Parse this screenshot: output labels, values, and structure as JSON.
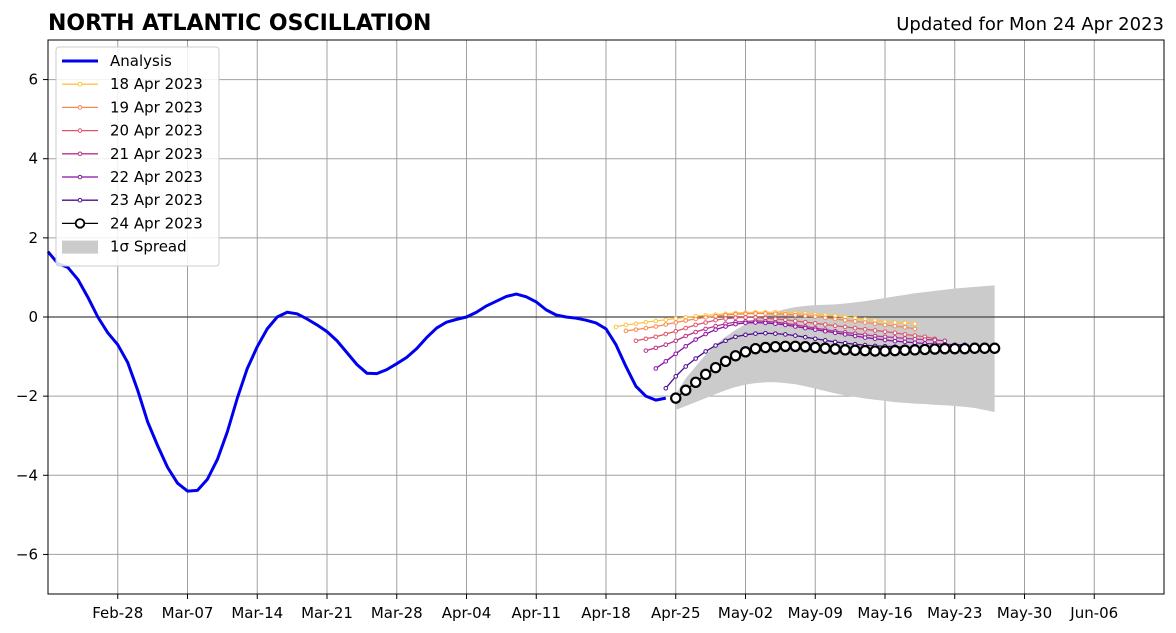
{
  "title": "NORTH ATLANTIC OSCILLATION",
  "updated": "Updated for Mon 24 Apr 2023",
  "chart_data": {
    "type": "line",
    "title": "NORTH ATLANTIC OSCILLATION",
    "subtitle": "Updated for Mon 24 Apr 2023",
    "xlabel": "",
    "ylabel": "",
    "x_unit": "date (2023)",
    "xlim": [
      "2023-02-21",
      "2023-06-13"
    ],
    "ylim": [
      -7,
      7
    ],
    "grid": true,
    "legend_position": "top-left",
    "x_ticks": [
      {
        "date": "2023-02-28",
        "label": "Feb-28"
      },
      {
        "date": "2023-03-07",
        "label": "Mar-07"
      },
      {
        "date": "2023-03-14",
        "label": "Mar-14"
      },
      {
        "date": "2023-03-21",
        "label": "Mar-21"
      },
      {
        "date": "2023-03-28",
        "label": "Mar-28"
      },
      {
        "date": "2023-04-04",
        "label": "Apr-04"
      },
      {
        "date": "2023-04-11",
        "label": "Apr-11"
      },
      {
        "date": "2023-04-18",
        "label": "Apr-18"
      },
      {
        "date": "2023-04-25",
        "label": "Apr-25"
      },
      {
        "date": "2023-05-02",
        "label": "May-02"
      },
      {
        "date": "2023-05-09",
        "label": "May-09"
      },
      {
        "date": "2023-05-16",
        "label": "May-16"
      },
      {
        "date": "2023-05-23",
        "label": "May-23"
      },
      {
        "date": "2023-05-30",
        "label": "May-30"
      },
      {
        "date": "2023-06-06",
        "label": "Jun-06"
      }
    ],
    "y_ticks": [
      {
        "value": -6,
        "label": "−6"
      },
      {
        "value": -4,
        "label": "−4"
      },
      {
        "value": -2,
        "label": "−2"
      },
      {
        "value": 0,
        "label": "0"
      },
      {
        "value": 2,
        "label": "2"
      },
      {
        "value": 4,
        "label": "4"
      },
      {
        "value": 6,
        "label": "6"
      }
    ],
    "series": [
      {
        "name": "Analysis",
        "color": "#0000ee",
        "marker": "none",
        "x": [
          "2023-02-21",
          "2023-02-22",
          "2023-02-23",
          "2023-02-24",
          "2023-02-25",
          "2023-02-26",
          "2023-02-27",
          "2023-02-28",
          "2023-03-01",
          "2023-03-02",
          "2023-03-03",
          "2023-03-04",
          "2023-03-05",
          "2023-03-06",
          "2023-03-07",
          "2023-03-08",
          "2023-03-09",
          "2023-03-10",
          "2023-03-11",
          "2023-03-12",
          "2023-03-13",
          "2023-03-14",
          "2023-03-15",
          "2023-03-16",
          "2023-03-17",
          "2023-03-18",
          "2023-03-19",
          "2023-03-20",
          "2023-03-21",
          "2023-03-22",
          "2023-03-23",
          "2023-03-24",
          "2023-03-25",
          "2023-03-26",
          "2023-03-27",
          "2023-03-28",
          "2023-03-29",
          "2023-03-30",
          "2023-03-31",
          "2023-04-01",
          "2023-04-02",
          "2023-04-03",
          "2023-04-04",
          "2023-04-05",
          "2023-04-06",
          "2023-04-07",
          "2023-04-08",
          "2023-04-09",
          "2023-04-10",
          "2023-04-11",
          "2023-04-12",
          "2023-04-13",
          "2023-04-14",
          "2023-04-15",
          "2023-04-16",
          "2023-04-17",
          "2023-04-18",
          "2023-04-19",
          "2023-04-20",
          "2023-04-21",
          "2023-04-22",
          "2023-04-23",
          "2023-04-24"
        ],
        "values": [
          1.65,
          1.35,
          1.25,
          0.95,
          0.5,
          0.0,
          -0.4,
          -0.7,
          -1.15,
          -1.85,
          -2.65,
          -3.25,
          -3.8,
          -4.2,
          -4.4,
          -4.38,
          -4.1,
          -3.6,
          -2.9,
          -2.05,
          -1.3,
          -0.75,
          -0.3,
          0.0,
          0.12,
          0.08,
          -0.05,
          -0.2,
          -0.37,
          -0.6,
          -0.9,
          -1.2,
          -1.42,
          -1.43,
          -1.33,
          -1.18,
          -1.02,
          -0.8,
          -0.52,
          -0.28,
          -0.13,
          -0.06,
          0.0,
          0.12,
          0.28,
          0.4,
          0.52,
          0.58,
          0.51,
          0.38,
          0.18,
          0.05,
          0.0,
          -0.03,
          -0.08,
          -0.15,
          -0.3,
          -0.7,
          -1.25,
          -1.75,
          -2.0,
          -2.1,
          -2.05
        ]
      },
      {
        "name": "18 Apr 2023",
        "color": "#ffc247",
        "marker": "small-dot",
        "start": "2023-04-19",
        "values": [
          -0.25,
          -0.2,
          -0.17,
          -0.13,
          -0.1,
          -0.07,
          -0.04,
          -0.01,
          0.02,
          0.04,
          0.06,
          0.08,
          0.1,
          0.11,
          0.12,
          0.12,
          0.12,
          0.11,
          0.1,
          0.09,
          0.07,
          0.05,
          0.03,
          0.0,
          -0.03,
          -0.06,
          -0.09,
          -0.12,
          -0.14,
          -0.15,
          -0.17
        ]
      },
      {
        "name": "19 Apr 2023",
        "color": "#f9894d",
        "marker": "small-dot",
        "start": "2023-04-20",
        "values": [
          -0.35,
          -0.32,
          -0.28,
          -0.24,
          -0.19,
          -0.14,
          -0.09,
          -0.05,
          -0.01,
          0.02,
          0.05,
          0.07,
          0.08,
          0.09,
          0.09,
          0.08,
          0.07,
          0.05,
          0.03,
          0.01,
          -0.02,
          -0.05,
          -0.08,
          -0.11,
          -0.14,
          -0.17,
          -0.2,
          -0.23,
          -0.26,
          -0.3
        ]
      },
      {
        "name": "20 Apr 2023",
        "color": "#e0546a",
        "marker": "small-dot",
        "start": "2023-04-21",
        "values": [
          -0.6,
          -0.55,
          -0.5,
          -0.43,
          -0.36,
          -0.28,
          -0.2,
          -0.14,
          -0.08,
          -0.04,
          -0.02,
          -0.01,
          -0.01,
          -0.03,
          -0.05,
          -0.07,
          -0.1,
          -0.13,
          -0.16,
          -0.19,
          -0.22,
          -0.25,
          -0.28,
          -0.31,
          -0.34,
          -0.37,
          -0.4,
          -0.44,
          -0.47,
          -0.5,
          -0.55
        ]
      },
      {
        "name": "21 Apr 2023",
        "color": "#b8338a",
        "marker": "small-dot",
        "start": "2023-04-22",
        "values": [
          -0.85,
          -0.78,
          -0.7,
          -0.6,
          -0.48,
          -0.38,
          -0.3,
          -0.23,
          -0.17,
          -0.13,
          -0.11,
          -0.1,
          -0.11,
          -0.13,
          -0.16,
          -0.2,
          -0.24,
          -0.28,
          -0.32,
          -0.36,
          -0.39,
          -0.42,
          -0.45,
          -0.48,
          -0.5,
          -0.52,
          -0.54,
          -0.56,
          -0.57,
          -0.58,
          -0.6
        ]
      },
      {
        "name": "22 Apr 2023",
        "color": "#8a12a8",
        "marker": "small-dot",
        "start": "2023-04-23",
        "values": [
          -1.3,
          -1.12,
          -0.93,
          -0.74,
          -0.57,
          -0.43,
          -0.32,
          -0.24,
          -0.18,
          -0.15,
          -0.14,
          -0.15,
          -0.17,
          -0.2,
          -0.24,
          -0.28,
          -0.32,
          -0.36,
          -0.4,
          -0.44,
          -0.48,
          -0.52,
          -0.55,
          -0.58,
          -0.61,
          -0.63,
          -0.65,
          -0.67,
          -0.68,
          -0.69,
          -0.7,
          -0.7
        ]
      },
      {
        "name": "23 Apr 2023",
        "color": "#4b0c8f",
        "marker": "small-dot",
        "start": "2023-04-24",
        "values": [
          -1.8,
          -1.5,
          -1.25,
          -1.05,
          -0.87,
          -0.72,
          -0.6,
          -0.5,
          -0.45,
          -0.42,
          -0.41,
          -0.42,
          -0.44,
          -0.47,
          -0.51,
          -0.55,
          -0.59,
          -0.63,
          -0.66,
          -0.69,
          -0.71,
          -0.73,
          -0.74,
          -0.75,
          -0.76,
          -0.77,
          -0.78,
          -0.79,
          -0.8,
          -0.8,
          -0.8
        ]
      },
      {
        "name": "24 Apr 2023",
        "color": "#000000",
        "marker": "open-circle",
        "start": "2023-04-25",
        "values": [
          -2.05,
          -1.85,
          -1.65,
          -1.45,
          -1.28,
          -1.12,
          -0.98,
          -0.88,
          -0.8,
          -0.77,
          -0.75,
          -0.74,
          -0.74,
          -0.75,
          -0.77,
          -0.79,
          -0.81,
          -0.83,
          -0.84,
          -0.85,
          -0.86,
          -0.86,
          -0.85,
          -0.84,
          -0.83,
          -0.82,
          -0.81,
          -0.8,
          -0.8,
          -0.8,
          -0.79,
          -0.79,
          -0.79
        ]
      }
    ],
    "spread": {
      "name": "1σ Spread",
      "color": "#cbcbcb",
      "start": "2023-04-25",
      "upper": [
        -1.95,
        -1.55,
        -1.25,
        -0.95,
        -0.7,
        -0.5,
        -0.33,
        -0.18,
        -0.05,
        0.05,
        0.13,
        0.2,
        0.25,
        0.28,
        0.3,
        0.31,
        0.32,
        0.34,
        0.37,
        0.4,
        0.44,
        0.48,
        0.52,
        0.56,
        0.6,
        0.63,
        0.66,
        0.69,
        0.72,
        0.74,
        0.76,
        0.78,
        0.8
      ],
      "lower": [
        -2.35,
        -2.25,
        -2.15,
        -2.05,
        -1.95,
        -1.85,
        -1.77,
        -1.71,
        -1.67,
        -1.65,
        -1.65,
        -1.67,
        -1.7,
        -1.75,
        -1.81,
        -1.87,
        -1.93,
        -1.98,
        -2.02,
        -2.06,
        -2.09,
        -2.12,
        -2.15,
        -2.17,
        -2.19,
        -2.2,
        -2.22,
        -2.23,
        -2.25,
        -2.27,
        -2.3,
        -2.35,
        -2.4
      ]
    }
  }
}
